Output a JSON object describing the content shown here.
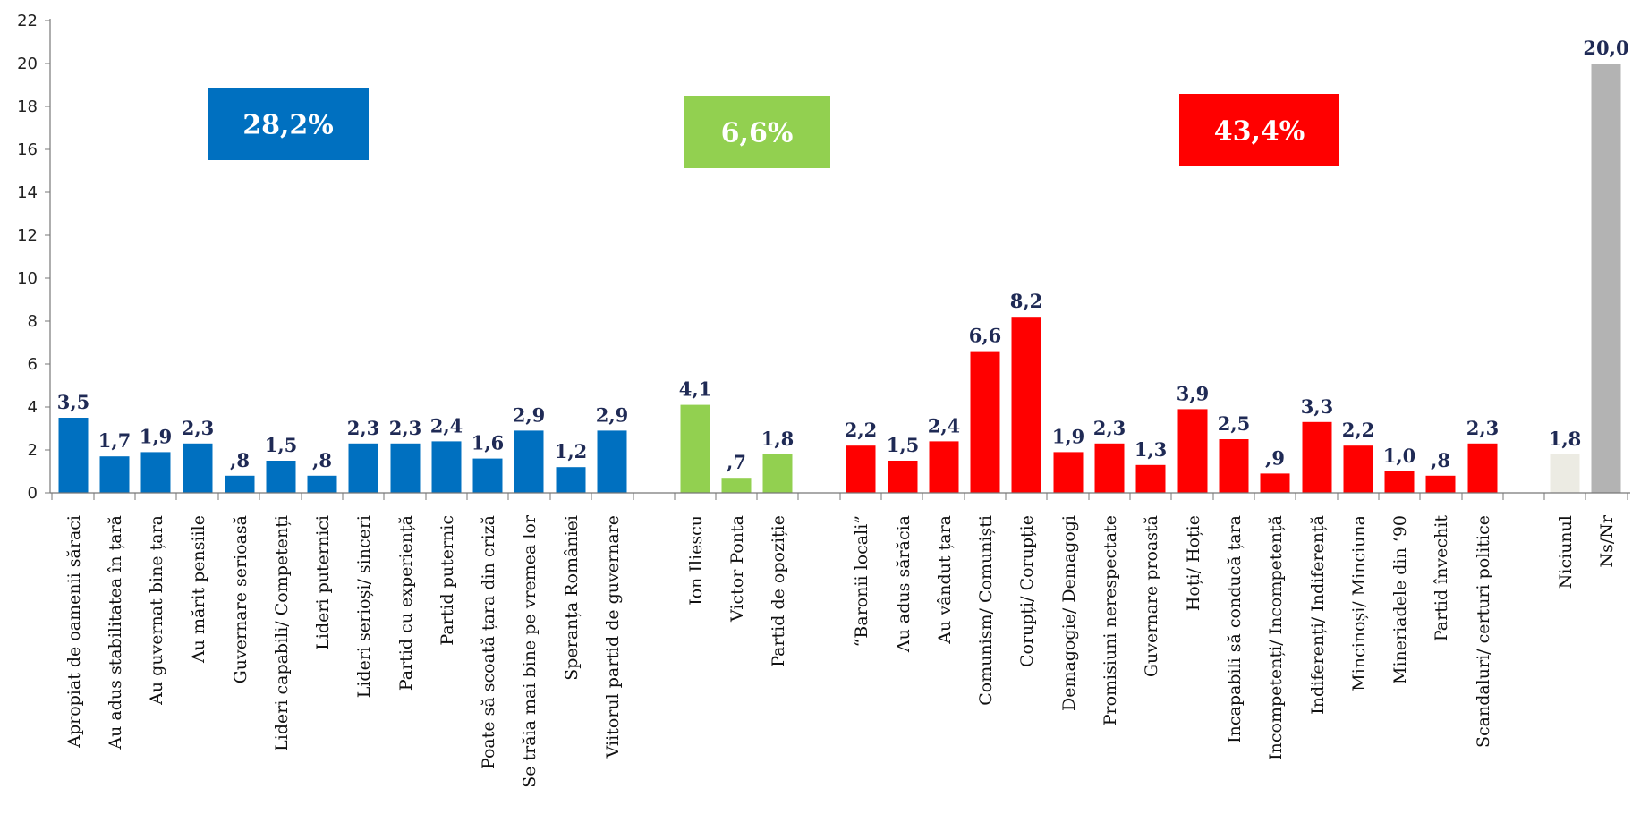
{
  "chart_data": {
    "type": "bar",
    "ylim": [
      0,
      22
    ],
    "yticks": [
      0,
      2,
      4,
      6,
      8,
      10,
      12,
      14,
      16,
      18,
      20,
      22
    ],
    "colors": {
      "blue": "#0070c0",
      "green": "#92d050",
      "red": "#ff0000",
      "beige": "#ecebe3",
      "gray": "#b3b3b3",
      "label": "#1f2a55"
    },
    "categories": [
      "Apropiat de oamenii săraci",
      "Au adus stabilitatea în țară",
      "Au guvernat bine țara",
      "Au mărit pensiile",
      "Guvernare serioasă",
      "Lideri capabili/ Competenți",
      "Lideri puternici",
      "Lideri serioși/ sinceri",
      "Partid cu experiență",
      "Partid puternic",
      "Poate să scoată țara din criză",
      "Se trăia mai bine pe vremea lor",
      "Speranța României",
      "Viitorul partid de guvernare",
      "Ion Iliescu",
      "Victor Ponta",
      "Partid de opoziție",
      "“Baronii locali”",
      "Au adus sărăcia",
      "Au vândut țara",
      "Comunism/ Comuniști",
      "Corupți/ Corupție",
      "Demagogie/ Demagogi",
      "Promisiuni nerespectate",
      "Guvernare proastă",
      "Hoți/ Hoție",
      "Incapabili să conducă țara",
      "Incompetenți/ Incompetență",
      "Indiferenți/ Indiferență",
      "Mincinoși/ Minciuna",
      "Mineriadele din ‘90",
      "Partid învechit",
      "Scandaluri/ certuri politice",
      "Niciunul",
      "Ns/Nr"
    ],
    "values": [
      3.5,
      1.7,
      1.9,
      2.3,
      0.8,
      1.5,
      0.8,
      2.3,
      2.3,
      2.4,
      1.6,
      2.9,
      1.2,
      2.9,
      4.1,
      0.7,
      1.8,
      2.2,
      1.5,
      2.4,
      6.6,
      8.2,
      1.9,
      2.3,
      1.3,
      3.9,
      2.5,
      0.9,
      3.3,
      2.2,
      1.0,
      0.8,
      2.3,
      1.8,
      20.0
    ],
    "value_labels": [
      "3,5",
      "1,7",
      "1,9",
      "2,3",
      ",8",
      "1,5",
      ",8",
      "2,3",
      "2,3",
      "2,4",
      "1,6",
      "2,9",
      "1,2",
      "2,9",
      "4,1",
      ",7",
      "1,8",
      "2,2",
      "1,5",
      "2,4",
      "6,6",
      "8,2",
      "1,9",
      "2,3",
      "1,3",
      "3,9",
      "2,5",
      ",9",
      "3,3",
      "2,2",
      "1,0",
      ",8",
      "2,3",
      "1,8",
      "20,0"
    ],
    "bar_colors": [
      "blue",
      "blue",
      "blue",
      "blue",
      "blue",
      "blue",
      "blue",
      "blue",
      "blue",
      "blue",
      "blue",
      "blue",
      "blue",
      "blue",
      "green",
      "green",
      "green",
      "red",
      "red",
      "red",
      "red",
      "red",
      "red",
      "red",
      "red",
      "red",
      "red",
      "red",
      "red",
      "red",
      "red",
      "red",
      "red",
      "beige",
      "gray"
    ],
    "callouts": [
      {
        "text": "28,2%",
        "color": "blue"
      },
      {
        "text": "6,6%",
        "color": "green"
      },
      {
        "text": "43,4%",
        "color": "red"
      }
    ]
  }
}
